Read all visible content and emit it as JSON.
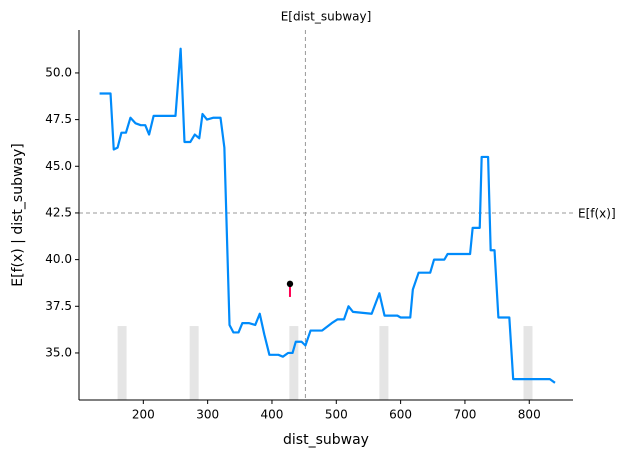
{
  "chart_data": {
    "type": "line",
    "title": "E[dist_subway]",
    "xlabel": "dist_subway",
    "ylabel": "E[f(x) | dist_subway]",
    "xlim": [
      100,
      868
    ],
    "ylim": [
      32.48,
      52.3
    ],
    "xticks": [
      200,
      300,
      400,
      500,
      600,
      700,
      800
    ],
    "yticks": [
      {
        "value": 35,
        "label": "35.0"
      },
      {
        "value": 37.5,
        "label": "37.5"
      },
      {
        "value": 40,
        "label": "40.0"
      },
      {
        "value": 42.5,
        "label": "42.5"
      },
      {
        "value": 45,
        "label": "45.0"
      },
      {
        "value": 47.5,
        "label": "47.5"
      },
      {
        "value": 50,
        "label": "50.0"
      }
    ],
    "series": [
      {
        "color": "#008bfb",
        "x": [
          132,
          149,
          154,
          160,
          166,
          173,
          180,
          188,
          196,
          203,
          209,
          216,
          224,
          250,
          258,
          264,
          273,
          280,
          287,
          292,
          299,
          309,
          320,
          326,
          334,
          340,
          348,
          354,
          364,
          374,
          381,
          388,
          396,
          410,
          417,
          425,
          432,
          437,
          446,
          452,
          460,
          478,
          493,
          502,
          512,
          519,
          526,
          555,
          567,
          575,
          595,
          600,
          615,
          619,
          628,
          646,
          652,
          668,
          673,
          708,
          712,
          723,
          726,
          736,
          740,
          746,
          752,
          769,
          775,
          832,
          840
        ],
        "values": [
          48.9,
          48.9,
          45.9,
          46.0,
          46.8,
          46.8,
          47.6,
          47.3,
          47.2,
          47.2,
          46.7,
          47.7,
          47.7,
          47.7,
          51.3,
          46.3,
          46.3,
          46.7,
          46.5,
          47.8,
          47.5,
          47.6,
          47.6,
          46.0,
          36.5,
          36.1,
          36.1,
          36.6,
          36.6,
          36.5,
          37.1,
          36.0,
          34.9,
          34.9,
          34.8,
          35.0,
          35.0,
          35.6,
          35.6,
          35.4,
          36.2,
          36.2,
          36.6,
          36.8,
          36.8,
          37.5,
          37.2,
          37.1,
          38.2,
          37.0,
          37.0,
          36.9,
          36.9,
          38.4,
          39.3,
          39.3,
          40.0,
          40.0,
          40.3,
          40.3,
          41.7,
          41.7,
          45.5,
          45.5,
          40.5,
          40.5,
          36.9,
          36.9,
          33.6,
          33.6,
          33.4
        ]
      }
    ],
    "histogram": {
      "color": "#e5e5e5",
      "x": [
        167,
        279,
        434,
        574,
        798
      ],
      "values": [
        36.44,
        36.44,
        36.44,
        36.44,
        36.44
      ]
    },
    "hline": {
      "value": 42.5,
      "label": "E[f(x)]"
    },
    "vline": 452,
    "point": {
      "x": 428,
      "y": 38.7,
      "end": 38.0,
      "color": "#ff0052"
    }
  }
}
